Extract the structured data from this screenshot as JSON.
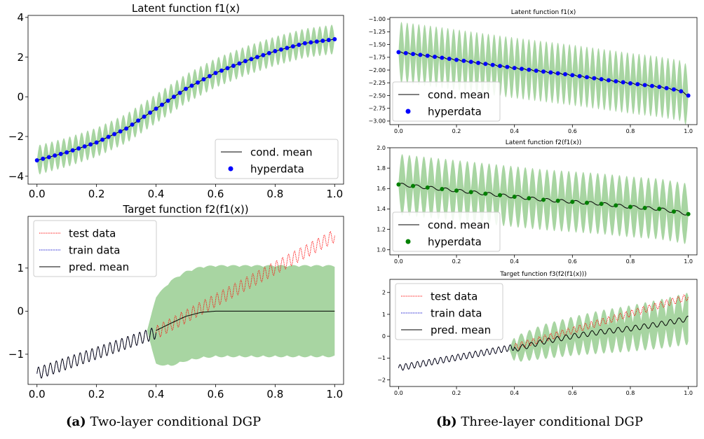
{
  "captions": [
    {
      "tag": "(a)",
      "text": "Two-layer conditional DGP"
    },
    {
      "tag": "(b)",
      "text": "Three-layer conditional DGP"
    }
  ],
  "colors": {
    "band": "#a8d5a2",
    "mean": "#000000",
    "hyper_blue": "#0000ff",
    "hyper_green": "#008000",
    "test": "#ff0000",
    "train": "#0000cc"
  },
  "chart_data": [
    {
      "id": "a_top",
      "type": "line",
      "title": "Latent function f1(x)",
      "xlim": [
        -0.03,
        1.03
      ],
      "ylim": [
        -4.4,
        4.1
      ],
      "xticks": [
        "0.0",
        "0.2",
        "0.4",
        "0.6",
        "0.8",
        "1.0"
      ],
      "yticks": [
        "−4",
        "−2",
        "0",
        "2",
        "4"
      ],
      "legend": {
        "position": "bottom-right",
        "entries": [
          {
            "label": "cond. mean",
            "kind": "line"
          },
          {
            "label": "hyperdata",
            "kind": "dot",
            "color": "#0000ff"
          }
        ]
      },
      "band": {
        "n_oscillations": 50,
        "max_halfwidth": 0.75,
        "min_halfwidth": 0.03
      },
      "mean_points": {
        "x": [
          0.0,
          0.1,
          0.2,
          0.3,
          0.4,
          0.5,
          0.6,
          0.7,
          0.8,
          0.9,
          1.0
        ],
        "y": [
          -3.2,
          -2.8,
          -2.3,
          -1.6,
          -0.6,
          0.4,
          1.2,
          1.8,
          2.3,
          2.7,
          2.9
        ]
      },
      "hyperdata": {
        "n": 51,
        "color": "#0000ff"
      }
    },
    {
      "id": "a_bottom",
      "type": "line",
      "title": "Target function f2(f1(x))",
      "xlim": [
        -0.03,
        1.03
      ],
      "ylim": [
        -1.7,
        2.2
      ],
      "xticks": [
        "0.0",
        "0.2",
        "0.4",
        "0.6",
        "0.8",
        "1.0"
      ],
      "yticks": [
        "−1",
        "0",
        "1"
      ],
      "legend": {
        "position": "top-left",
        "entries": [
          {
            "label": "test data",
            "kind": "dotted",
            "color": "#ff0000"
          },
          {
            "label": "train data",
            "kind": "dotted",
            "color": "#0000cc"
          },
          {
            "label": "pred. mean",
            "kind": "line"
          }
        ]
      },
      "train": {
        "x_start": 0.0,
        "x_end": 0.4,
        "y_start": -1.45,
        "y_end": -0.5,
        "amp": 0.14,
        "period": 0.02
      },
      "test": {
        "x_start": 0.4,
        "x_end": 1.0,
        "y_start": -0.5,
        "y_end": 1.75,
        "amp": 0.15,
        "period": 0.02
      },
      "pred_mean": {
        "x": [
          0.4,
          0.45,
          0.5,
          0.55,
          0.6,
          0.65,
          0.7,
          1.0
        ],
        "y": [
          -0.45,
          -0.28,
          -0.12,
          -0.03,
          0.0,
          0.0,
          0.0,
          0.0
        ]
      },
      "band": {
        "x": [
          0.37,
          0.4,
          0.45,
          0.5,
          0.55,
          0.6,
          1.0
        ],
        "halfwidth": [
          0.0,
          0.8,
          1.0,
          1.05,
          1.07,
          1.07,
          1.07
        ],
        "n_oscillations": 25
      }
    },
    {
      "id": "b_top",
      "type": "line",
      "title": "Latent function f1(x)",
      "xlim": [
        -0.03,
        1.03
      ],
      "ylim": [
        -3.07,
        -0.97
      ],
      "xticks": [
        "0.0",
        "0.2",
        "0.4",
        "0.6",
        "0.8",
        "1.0"
      ],
      "yticks": [
        "−1.00",
        "−1.25",
        "−1.50",
        "−1.75",
        "−2.00",
        "−2.25",
        "−2.50",
        "−2.75",
        "−3.00"
      ],
      "legend": {
        "position": "bottom-left",
        "entries": [
          {
            "label": "cond. mean",
            "kind": "line"
          },
          {
            "label": "hyperdata",
            "kind": "dot",
            "color": "#0000ff"
          }
        ]
      },
      "band": {
        "n_oscillations": 50,
        "max_halfwidth": 0.6,
        "min_halfwidth": 0.02
      },
      "mean_points": {
        "x": [
          0.0,
          0.1,
          0.2,
          0.3,
          0.4,
          0.5,
          0.6,
          0.7,
          0.8,
          0.9,
          0.97,
          1.0
        ],
        "y": [
          -1.65,
          -1.72,
          -1.8,
          -1.88,
          -1.96,
          -2.03,
          -2.1,
          -2.18,
          -2.26,
          -2.33,
          -2.4,
          -2.5
        ]
      },
      "hyperdata": {
        "x": [
          0.0,
          0.025,
          0.05,
          0.075,
          0.1,
          0.125,
          0.15,
          0.175,
          0.2,
          0.225,
          0.25,
          0.275,
          0.3,
          0.325,
          0.35,
          0.375,
          0.4,
          0.425,
          0.45,
          0.475,
          0.5,
          0.525,
          0.55,
          0.575,
          0.6,
          0.625,
          0.65,
          0.675,
          0.7,
          0.725,
          0.75,
          0.775,
          0.8,
          0.825,
          0.85,
          0.875,
          0.9,
          0.925,
          0.95,
          0.975,
          1.0
        ],
        "color": "#0000ff"
      }
    },
    {
      "id": "b_mid",
      "type": "line",
      "title": "Latent function f2(f1(x))",
      "xlim": [
        -0.03,
        1.03
      ],
      "ylim": [
        0.95,
        2.0
      ],
      "xticks": [
        "0.0",
        "0.2",
        "0.4",
        "0.6",
        "0.8",
        "1.0"
      ],
      "yticks": [
        "2.0",
        "1.8",
        "1.6",
        "1.4",
        "1.2",
        "1.0"
      ],
      "legend": {
        "position": "bottom-left",
        "entries": [
          {
            "label": "cond. mean",
            "kind": "line"
          },
          {
            "label": "hyperdata",
            "kind": "dot",
            "color": "#008000"
          }
        ]
      },
      "band": {
        "n_oscillations": 40,
        "max_halfwidth": 0.3,
        "min_halfwidth": 0.02
      },
      "mean_points": {
        "x": [
          0.0,
          0.1,
          0.2,
          0.3,
          0.4,
          0.5,
          0.6,
          0.7,
          0.8,
          0.9,
          1.0
        ],
        "y": [
          1.64,
          1.61,
          1.58,
          1.55,
          1.52,
          1.49,
          1.47,
          1.45,
          1.42,
          1.4,
          1.35
        ]
      },
      "hyperdata": {
        "x": [
          0.0,
          0.05,
          0.1,
          0.15,
          0.2,
          0.25,
          0.3,
          0.35,
          0.4,
          0.45,
          0.5,
          0.55,
          0.6,
          0.65,
          0.7,
          0.75,
          0.8,
          0.85,
          0.9,
          0.95,
          1.0
        ],
        "color": "#008000"
      }
    },
    {
      "id": "b_bottom",
      "type": "line",
      "title": "Target function f3(f2(f1(x)))",
      "xlim": [
        -0.03,
        1.03
      ],
      "ylim": [
        -2.3,
        2.6
      ],
      "xticks": [
        "0.0",
        "0.2",
        "0.4",
        "0.6",
        "0.8",
        "1.0"
      ],
      "yticks": [
        "2",
        "1",
        "0",
        "−1",
        "−2"
      ],
      "legend": {
        "position": "top-left",
        "entries": [
          {
            "label": "test data",
            "kind": "dotted",
            "color": "#ff0000"
          },
          {
            "label": "train data",
            "kind": "dotted",
            "color": "#0000cc"
          },
          {
            "label": "pred. mean",
            "kind": "line"
          }
        ]
      },
      "train": {
        "x_start": 0.0,
        "x_end": 0.4,
        "y_start": -1.45,
        "y_end": -0.5,
        "amp": 0.14,
        "period": 0.02
      },
      "test": {
        "x_start": 0.4,
        "x_end": 1.0,
        "y_start": -0.5,
        "y_end": 1.8,
        "amp": 0.15,
        "period": 0.02
      },
      "pred_mean": {
        "x": [
          0.4,
          0.5,
          0.6,
          0.7,
          0.8,
          0.9,
          1.0
        ],
        "y": [
          -0.6,
          -0.25,
          0.0,
          0.2,
          0.35,
          0.55,
          0.8
        ]
      },
      "band": {
        "x": [
          0.38,
          0.4,
          0.5,
          0.7,
          1.0
        ],
        "halfwidth": [
          0.0,
          0.6,
          0.8,
          1.0,
          1.2
        ],
        "n_oscillations": 35
      }
    }
  ]
}
